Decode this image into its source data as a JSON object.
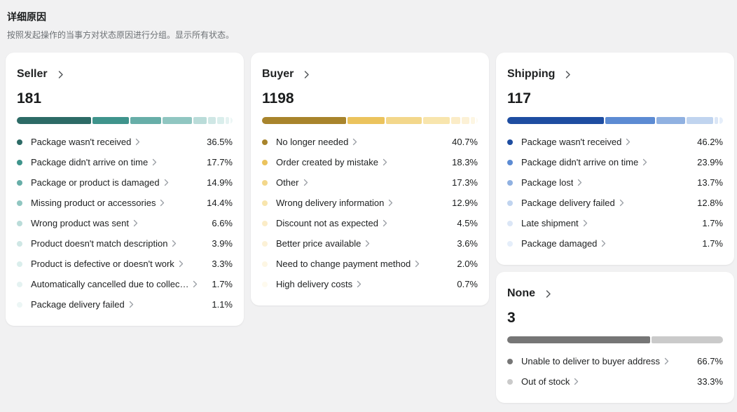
{
  "page": {
    "title": "详细原因",
    "subtitle": "按照发起操作的当事方对状态原因进行分组。显示所有状态。"
  },
  "chevron_colors": {
    "title": "#54575b",
    "row": "#9a9fa5"
  },
  "cards": [
    {
      "id": "seller",
      "column": 0,
      "title": "Seller",
      "count": "181",
      "colors": [
        "#2d6b66",
        "#3f948c",
        "#67aea8",
        "#90c6c1",
        "#badcd9",
        "#cfe7e5",
        "#daeeec",
        "#e4f2f1",
        "#ecf6f5"
      ],
      "items": [
        {
          "label": "Package wasn't received",
          "value": "36.5%",
          "pct": 36.5
        },
        {
          "label": "Package didn't arrive on time",
          "value": "17.7%",
          "pct": 17.7
        },
        {
          "label": "Package or product is damaged",
          "value": "14.9%",
          "pct": 14.9
        },
        {
          "label": "Missing product or accessories",
          "value": "14.4%",
          "pct": 14.4
        },
        {
          "label": "Wrong product was sent",
          "value": "6.6%",
          "pct": 6.6
        },
        {
          "label": "Product doesn't match description",
          "value": "3.9%",
          "pct": 3.9
        },
        {
          "label": "Product is defective or doesn't work",
          "value": "3.3%",
          "pct": 3.3
        },
        {
          "label": "Automatically cancelled due to collec…",
          "value": "1.7%",
          "pct": 1.7
        },
        {
          "label": "Package delivery failed",
          "value": "1.1%",
          "pct": 1.1
        }
      ]
    },
    {
      "id": "buyer",
      "column": 1,
      "title": "Buyer",
      "count": "1198",
      "colors": [
        "#a8842c",
        "#ebc35d",
        "#f3d78b",
        "#f8e5ad",
        "#fbecc7",
        "#fcf1d6",
        "#fdf6e3",
        "#fefaee"
      ],
      "items": [
        {
          "label": "No longer needed",
          "value": "40.7%",
          "pct": 40.7
        },
        {
          "label": "Order created by mistake",
          "value": "18.3%",
          "pct": 18.3
        },
        {
          "label": "Other",
          "value": "17.3%",
          "pct": 17.3
        },
        {
          "label": "Wrong delivery information",
          "value": "12.9%",
          "pct": 12.9
        },
        {
          "label": "Discount not as expected",
          "value": "4.5%",
          "pct": 4.5
        },
        {
          "label": "Better price available",
          "value": "3.6%",
          "pct": 3.6
        },
        {
          "label": "Need to change payment method",
          "value": "2.0%",
          "pct": 2.0
        },
        {
          "label": "High delivery costs",
          "value": "0.7%",
          "pct": 0.7
        }
      ]
    },
    {
      "id": "shipping",
      "column": 2,
      "title": "Shipping",
      "count": "117",
      "colors": [
        "#1e4da1",
        "#5c8bd3",
        "#90b1e1",
        "#c0d4ef",
        "#dbe6f6",
        "#e5eefa"
      ],
      "items": [
        {
          "label": "Package wasn't received",
          "value": "46.2%",
          "pct": 46.2
        },
        {
          "label": "Package didn't arrive on time",
          "value": "23.9%",
          "pct": 23.9
        },
        {
          "label": "Package lost",
          "value": "13.7%",
          "pct": 13.7
        },
        {
          "label": "Package delivery failed",
          "value": "12.8%",
          "pct": 12.8
        },
        {
          "label": "Late shipment",
          "value": "1.7%",
          "pct": 1.7
        },
        {
          "label": "Package damaged",
          "value": "1.7%",
          "pct": 1.7
        }
      ]
    },
    {
      "id": "none",
      "column": 2,
      "title": "None",
      "count": "3",
      "colors": [
        "#767676",
        "#cacaca"
      ],
      "items": [
        {
          "label": "Unable to deliver to buyer address",
          "value": "66.7%",
          "pct": 66.7
        },
        {
          "label": "Out of stock",
          "value": "33.3%",
          "pct": 33.3
        }
      ]
    }
  ]
}
